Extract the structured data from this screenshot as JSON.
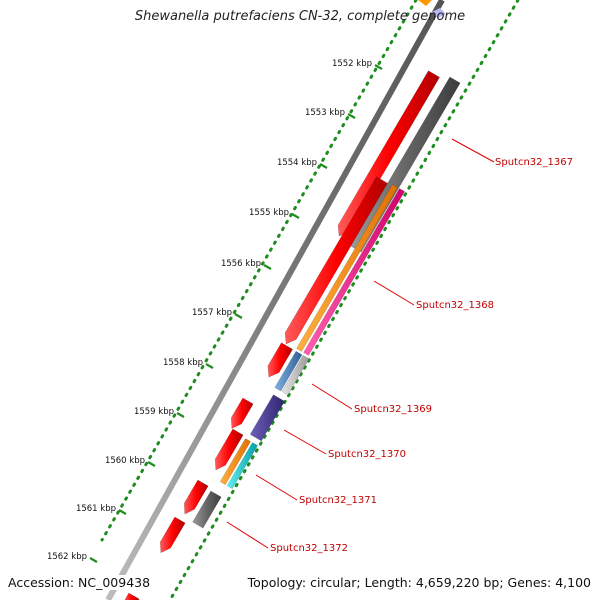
{
  "title": "Shewanella putrefaciens CN-32, complete genome",
  "accession": "Accession: NC_009438",
  "summary": "Topology: circular; Length: 4,659,220 bp; Genes: 4,100",
  "ruler_ticks": [
    "1552 kbp",
    "1553 kbp",
    "1554 kbp",
    "1555 kbp",
    "1556 kbp",
    "1557 kbp",
    "1558 kbp",
    "1559 kbp",
    "1560 kbp",
    "1561 kbp",
    "1562 kbp"
  ],
  "gene_labels": [
    "Sputcn32_1367",
    "Sputcn32_1368",
    "Sputcn32_1369",
    "Sputcn32_1370",
    "Sputcn32_1371",
    "Sputcn32_1372"
  ],
  "colors": {
    "cds": "#ff0000",
    "grey_feature": "#666666",
    "orange_feature": "#ff8c00",
    "pink_feature": "#ff1493",
    "steelblue_feature": "#4682b4",
    "silver_feature": "#c0c0c0",
    "purple_feature": "#4b3b8f",
    "cyan_feature": "#00c8c8",
    "backbone": "#8a8a8a",
    "gc_dots": "#1e8c1e",
    "label_line": "#e00000"
  }
}
